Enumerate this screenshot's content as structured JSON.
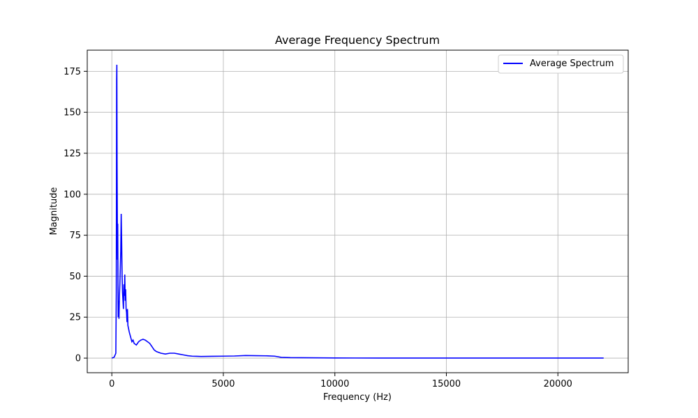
{
  "chart_data": {
    "type": "line",
    "title": "Average Frequency Spectrum",
    "xlabel": "Frequency (Hz)",
    "ylabel": "Magnitude",
    "xlim": [
      -1102,
      23152
    ],
    "ylim": [
      -8.9,
      187.9
    ],
    "xticks": [
      0,
      5000,
      10000,
      15000,
      20000
    ],
    "yticks": [
      0,
      25,
      50,
      75,
      100,
      125,
      150,
      175
    ],
    "grid": true,
    "legend": {
      "position": "top-right"
    },
    "colors": {
      "line": "#0000ff",
      "grid": "#b0b0b0",
      "axis": "#000000"
    },
    "series": [
      {
        "name": "Average Spectrum",
        "x": [
          0,
          100,
          150,
          180,
          200,
          215,
          225,
          235,
          245,
          255,
          265,
          275,
          285,
          300,
          320,
          340,
          360,
          380,
          400,
          420,
          440,
          460,
          480,
          500,
          520,
          540,
          560,
          580,
          600,
          620,
          640,
          660,
          680,
          700,
          720,
          750,
          780,
          820,
          860,
          900,
          950,
          1000,
          1100,
          1200,
          1300,
          1400,
          1500,
          1600,
          1700,
          1800,
          1900,
          2000,
          2200,
          2400,
          2600,
          2800,
          3000,
          3200,
          3400,
          3600,
          3800,
          4000,
          4500,
          5000,
          5500,
          6000,
          6500,
          7000,
          7300,
          7600,
          8000,
          9000,
          10000,
          12000,
          15000,
          18000,
          20000,
          22050
        ],
        "y": [
          0,
          0.5,
          2,
          3,
          40,
          170,
          179,
          120,
          90,
          60,
          82,
          50,
          25,
          35,
          24,
          38,
          45,
          55,
          65,
          88,
          72,
          50,
          40,
          35,
          30,
          45,
          38,
          51,
          35,
          42,
          30,
          28,
          22,
          30,
          20,
          18,
          16,
          14,
          12,
          10,
          11,
          9,
          8,
          10,
          11,
          11.5,
          11,
          10,
          9,
          7,
          5,
          4,
          3,
          2.5,
          3,
          3,
          2.5,
          2,
          1.5,
          1.2,
          1.1,
          1,
          1.1,
          1.2,
          1.3,
          1.6,
          1.5,
          1.4,
          1.2,
          0.5,
          0.3,
          0.2,
          0.1,
          0.05,
          0.05,
          0.05,
          0.05,
          0.05
        ]
      }
    ]
  }
}
